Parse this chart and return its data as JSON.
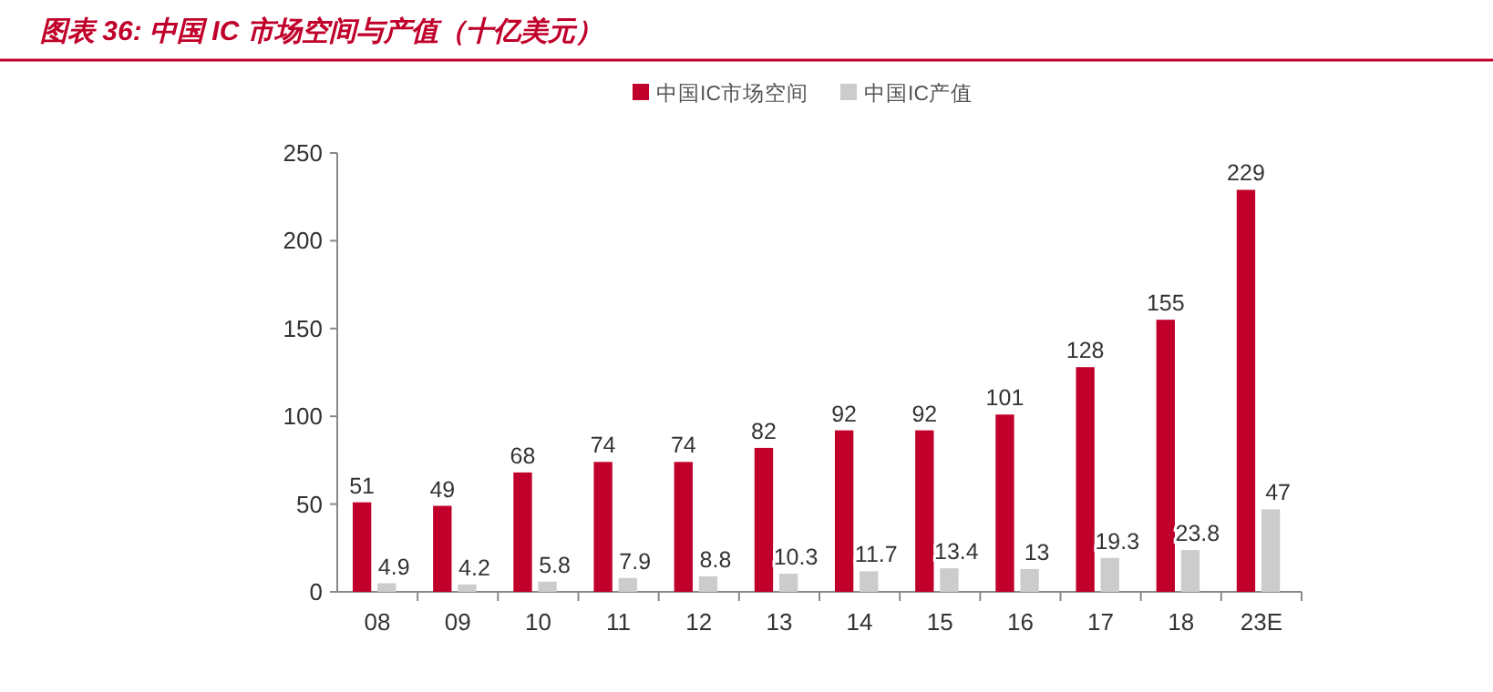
{
  "chart_data": {
    "type": "bar",
    "title": "图表 36:  中国 IC 市场空间与产值（十亿美元）",
    "categories": [
      "08",
      "09",
      "10",
      "11",
      "12",
      "13",
      "14",
      "15",
      "16",
      "17",
      "18",
      "23E"
    ],
    "series": [
      {
        "name": "中国IC市场空间",
        "color": "#c0002a",
        "values": [
          51,
          49,
          68,
          74,
          74,
          82,
          92,
          92,
          101,
          128,
          155,
          229
        ]
      },
      {
        "name": "中国IC产值",
        "color": "#cccccc",
        "values": [
          4.9,
          4.2,
          5.8,
          7.9,
          8.8,
          10.3,
          11.7,
          13.4,
          13,
          19.3,
          23.8,
          47
        ]
      }
    ],
    "ylim": [
      0,
      250
    ],
    "yticks": [
      0,
      50,
      100,
      150,
      200,
      250
    ],
    "grid": false,
    "legend": "top",
    "data_labels": true
  }
}
